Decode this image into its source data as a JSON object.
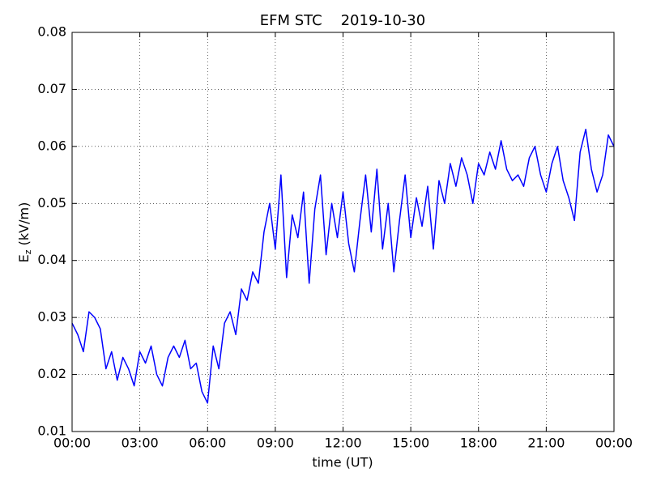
{
  "chart_data": {
    "type": "line",
    "title": "EFM STC    2019-10-30",
    "xlabel": "time (UT)",
    "ylabel": {
      "main": "E",
      "sub": "z",
      "unit": "(kV/m)"
    },
    "color": "#0000ff",
    "grid": true,
    "xlim": [
      0,
      24
    ],
    "xticks": [
      {
        "value": 0,
        "label": "00:00"
      },
      {
        "value": 3,
        "label": "03:00"
      },
      {
        "value": 6,
        "label": "06:00"
      },
      {
        "value": 9,
        "label": "09:00"
      },
      {
        "value": 12,
        "label": "12:00"
      },
      {
        "value": 15,
        "label": "15:00"
      },
      {
        "value": 18,
        "label": "18:00"
      },
      {
        "value": 21,
        "label": "21:00"
      },
      {
        "value": 24,
        "label": "00:00"
      }
    ],
    "ylim": [
      0.01,
      0.08
    ],
    "yticks": [
      0.01,
      0.02,
      0.03,
      0.04,
      0.05,
      0.06,
      0.07,
      0.08
    ],
    "x": [
      0,
      0.25,
      0.5,
      0.75,
      1,
      1.25,
      1.5,
      1.75,
      2,
      2.25,
      2.5,
      2.75,
      3,
      3.25,
      3.5,
      3.75,
      4,
      4.25,
      4.5,
      4.75,
      5,
      5.25,
      5.5,
      5.75,
      6,
      6.25,
      6.5,
      6.75,
      7,
      7.25,
      7.5,
      7.75,
      8,
      8.25,
      8.5,
      8.75,
      9,
      9.25,
      9.5,
      9.75,
      10,
      10.25,
      10.5,
      10.75,
      11,
      11.25,
      11.5,
      11.75,
      12,
      12.25,
      12.5,
      12.75,
      13,
      13.25,
      13.5,
      13.75,
      14,
      14.25,
      14.5,
      14.75,
      15,
      15.25,
      15.5,
      15.75,
      16,
      16.25,
      16.5,
      16.75,
      17,
      17.25,
      17.5,
      17.75,
      18,
      18.25,
      18.5,
      18.75,
      19,
      19.25,
      19.5,
      19.75,
      20,
      20.25,
      20.5,
      20.75,
      21,
      21.25,
      21.5,
      21.75,
      22,
      22.25,
      22.5,
      22.75,
      23,
      23.25,
      23.5,
      23.75,
      24
    ],
    "values": [
      0.029,
      0.027,
      0.024,
      0.031,
      0.03,
      0.028,
      0.021,
      0.024,
      0.019,
      0.023,
      0.021,
      0.018,
      0.024,
      0.022,
      0.025,
      0.02,
      0.018,
      0.023,
      0.025,
      0.023,
      0.026,
      0.021,
      0.022,
      0.017,
      0.015,
      0.025,
      0.021,
      0.029,
      0.031,
      0.027,
      0.035,
      0.033,
      0.038,
      0.036,
      0.045,
      0.05,
      0.042,
      0.055,
      0.037,
      0.048,
      0.044,
      0.052,
      0.036,
      0.049,
      0.055,
      0.041,
      0.05,
      0.044,
      0.052,
      0.043,
      0.038,
      0.047,
      0.055,
      0.045,
      0.056,
      0.042,
      0.05,
      0.038,
      0.047,
      0.055,
      0.044,
      0.051,
      0.046,
      0.053,
      0.042,
      0.054,
      0.05,
      0.057,
      0.053,
      0.058,
      0.055,
      0.05,
      0.057,
      0.055,
      0.059,
      0.056,
      0.061,
      0.056,
      0.054,
      0.055,
      0.053,
      0.058,
      0.06,
      0.055,
      0.052,
      0.057,
      0.06,
      0.054,
      0.051,
      0.047,
      0.059,
      0.063,
      0.056,
      0.052,
      0.055,
      0.062,
      0.06
    ]
  }
}
